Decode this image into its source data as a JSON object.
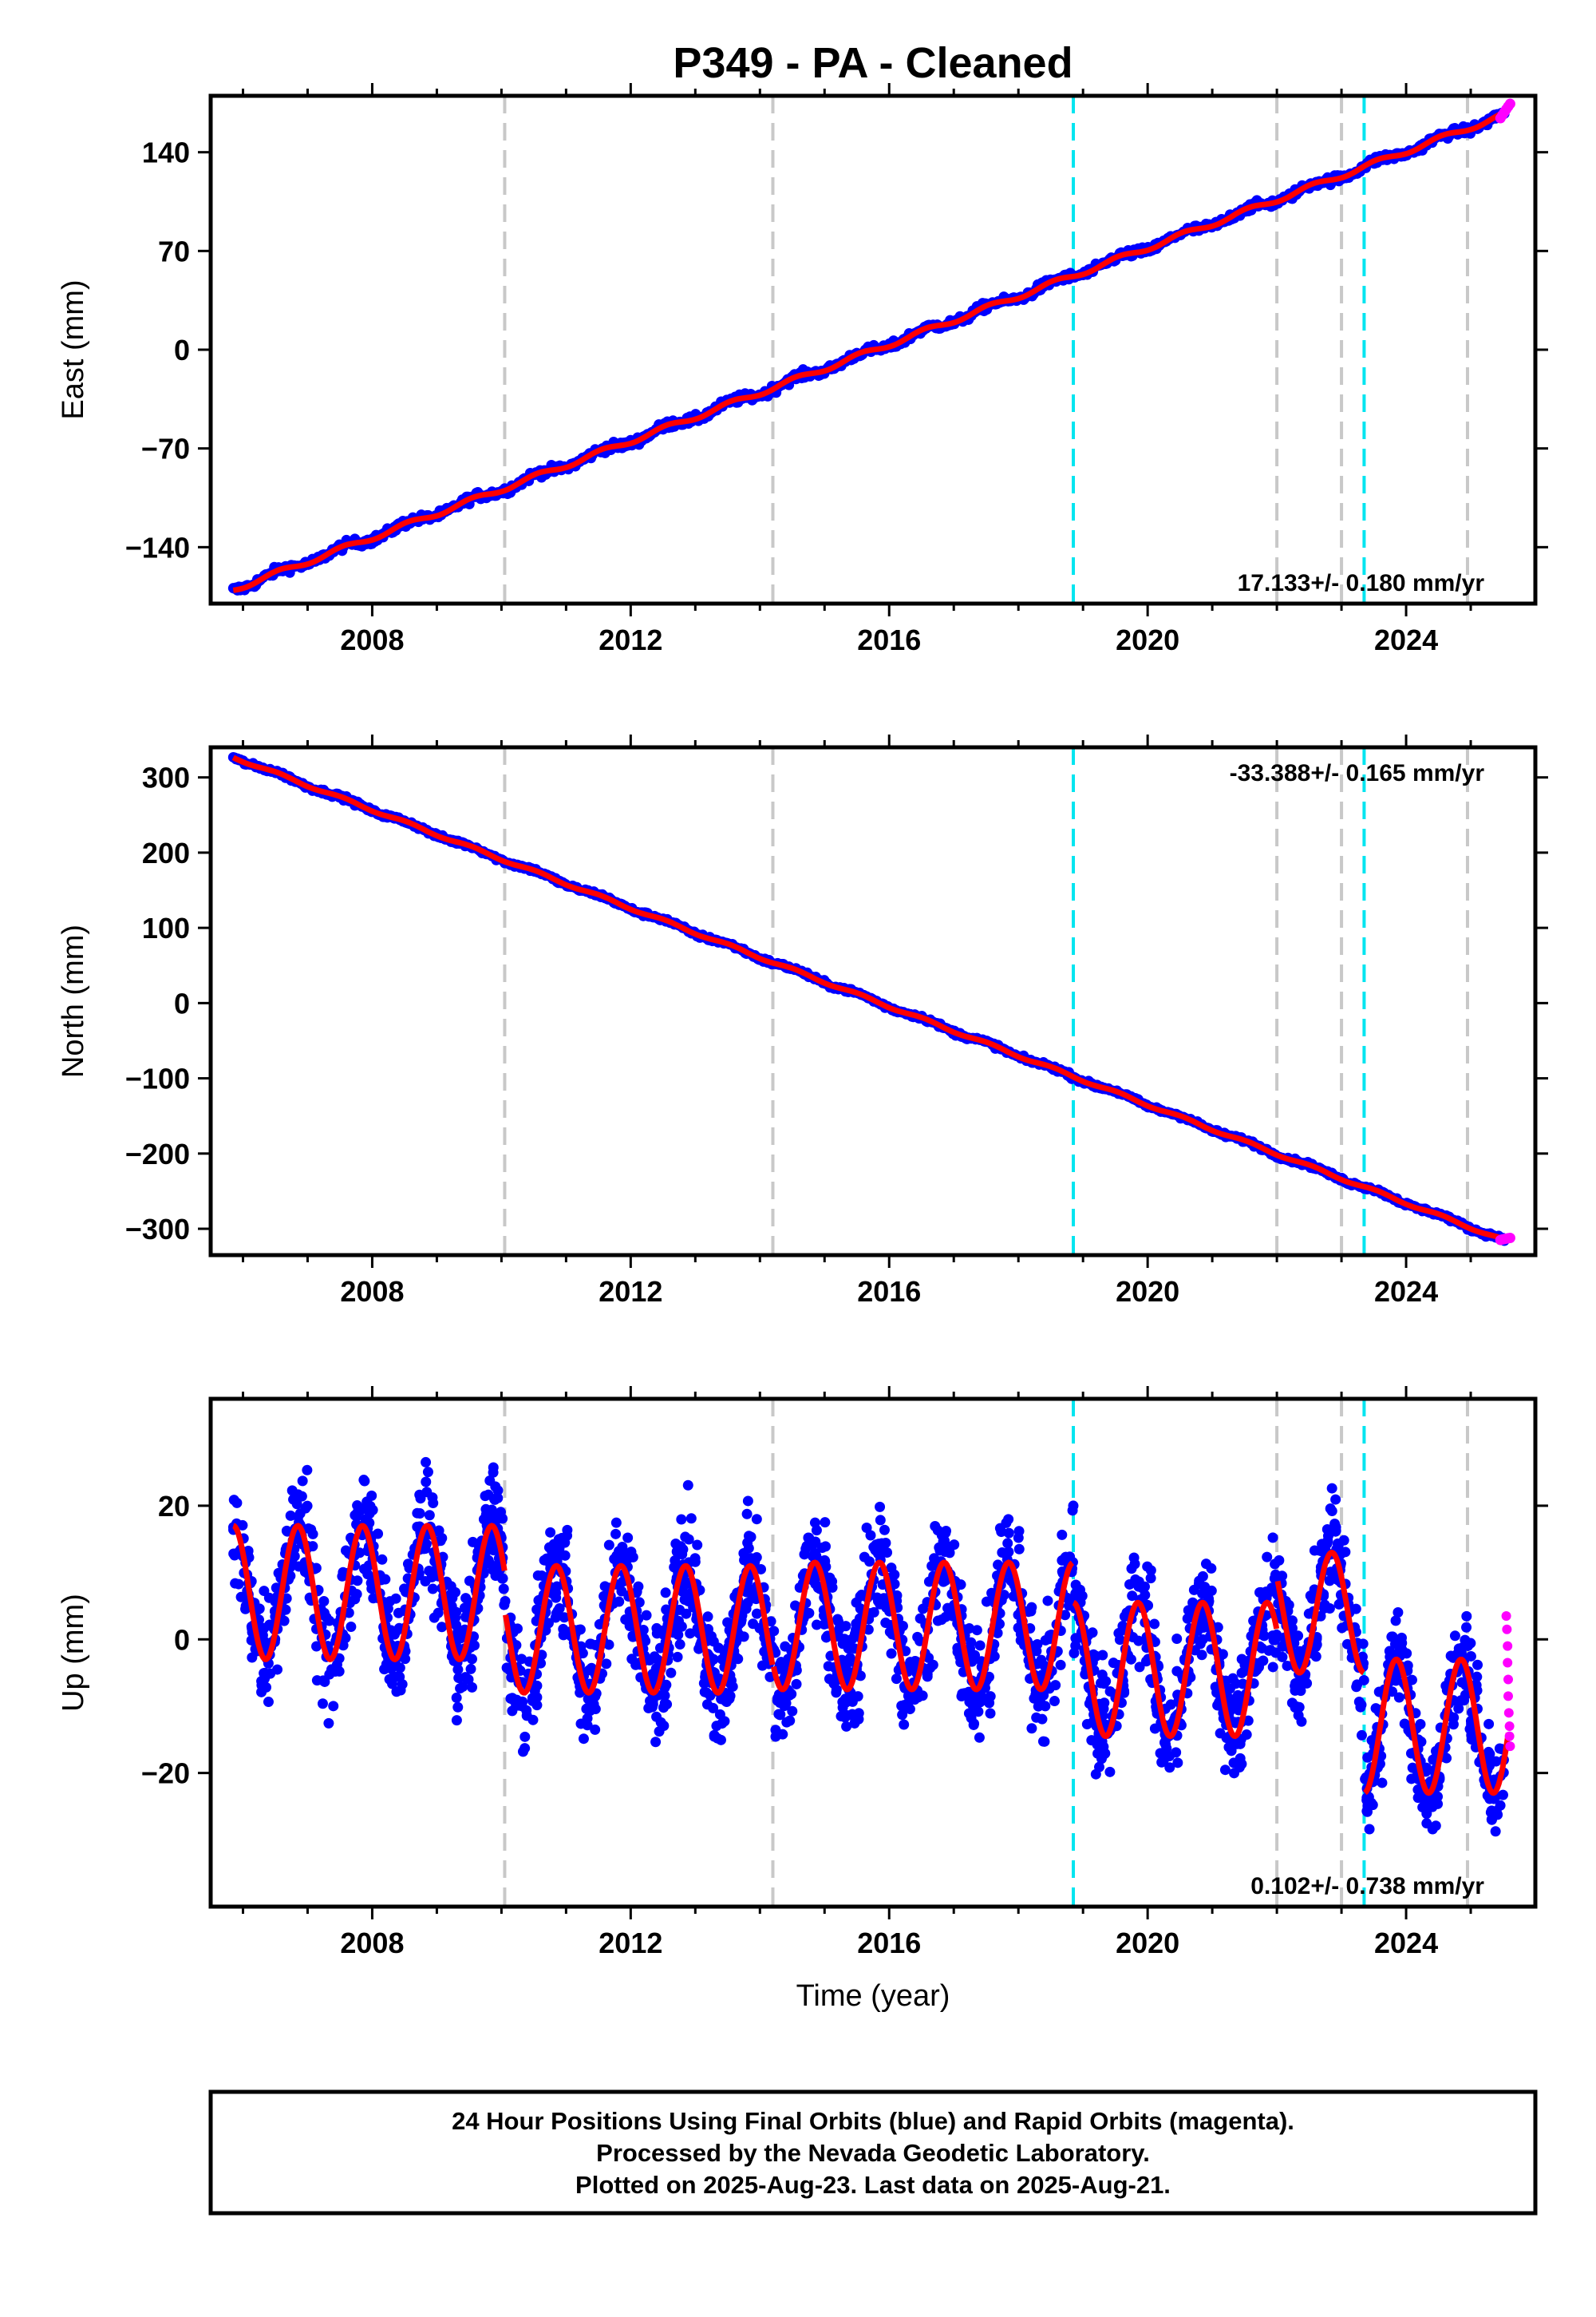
{
  "title": "P349  - PA - Cleaned",
  "colors": {
    "final_orbits": "#0000ff",
    "rapid_orbits": "#ff00ff",
    "model_fit": "#ff0000",
    "equipment_change": "#c8c8c8",
    "earthquake": "#00e5f0"
  },
  "chart_data": [
    {
      "type": "scatter",
      "ylabel": "East (mm)",
      "xlim": [
        2005.5,
        2026.0
      ],
      "ylim": [
        -180,
        180
      ],
      "xticks": [
        2008,
        2012,
        2016,
        2020,
        2024
      ],
      "yticks": [
        -140,
        -70,
        0,
        70,
        140
      ],
      "ytick_labels": [
        "−140",
        "−70",
        "0",
        "70",
        "140"
      ],
      "rate_text": "17.133+/- 0.180 mm/yr",
      "rate_position": "bottom-right",
      "start": [
        2005.85,
        -170
      ],
      "end": [
        2025.6,
        168
      ],
      "rate_mm_per_yr": 17.133,
      "gray_dashed_lines": [
        2010.05,
        2014.2,
        2022.0,
        2023.0,
        2024.95
      ],
      "cyan_dashed_lines": [
        2018.85,
        2023.35
      ]
    },
    {
      "type": "scatter",
      "ylabel": "North (mm)",
      "xlim": [
        2005.5,
        2026.0
      ],
      "ylim": [
        -335,
        340
      ],
      "xticks": [
        2008,
        2012,
        2016,
        2020,
        2024
      ],
      "yticks": [
        -300,
        -200,
        -100,
        0,
        100,
        200,
        300
      ],
      "ytick_labels": [
        "−300",
        "−200",
        "−100",
        "0",
        "100",
        "200",
        "300"
      ],
      "rate_text": "-33.388+/- 0.165 mm/yr",
      "rate_position": "top-right",
      "start": [
        2005.85,
        327
      ],
      "end": [
        2025.6,
        -318
      ],
      "rate_mm_per_yr": -33.388,
      "gray_dashed_lines": [
        2010.05,
        2014.2,
        2022.0,
        2023.0,
        2024.95
      ],
      "cyan_dashed_lines": [
        2018.85,
        2023.35
      ]
    },
    {
      "type": "scatter",
      "ylabel": "Up (mm)",
      "xlabel": "Time (year)",
      "xlim": [
        2005.5,
        2026.0
      ],
      "ylim": [
        -40,
        36
      ],
      "xticks": [
        2008,
        2012,
        2016,
        2020,
        2024
      ],
      "yticks": [
        -20,
        0,
        20
      ],
      "ytick_labels": [
        "−20",
        "0",
        "20"
      ],
      "rate_text": "0.102+/- 0.738 mm/yr",
      "rate_position": "bottom-right",
      "rate_mm_per_yr": 0.102,
      "seasonal_segments": [
        {
          "from": 2005.85,
          "to": 2010.05,
          "offset": 7,
          "amplitude": 10
        },
        {
          "from": 2010.05,
          "to": 2014.2,
          "offset": 1.5,
          "amplitude": 9.5
        },
        {
          "from": 2014.2,
          "to": 2018.85,
          "offset": 2,
          "amplitude": 9.5
        },
        {
          "from": 2018.85,
          "to": 2022.0,
          "offset": -4.5,
          "amplitude": 10
        },
        {
          "from": 2022.0,
          "to": 2023.35,
          "offset": 4,
          "amplitude": 9
        },
        {
          "from": 2023.35,
          "to": 2025.6,
          "offset": -13,
          "amplitude": 10
        }
      ],
      "rapid_orbit_points": [
        [
          2025.55,
          3.5
        ],
        [
          2025.56,
          1.5
        ],
        [
          2025.57,
          -1
        ],
        [
          2025.57,
          -3.5
        ],
        [
          2025.58,
          -6
        ],
        [
          2025.58,
          -8.5
        ],
        [
          2025.59,
          -11
        ],
        [
          2025.6,
          -13
        ],
        [
          2025.6,
          -14.5
        ],
        [
          2025.61,
          -16
        ]
      ],
      "gray_dashed_lines": [
        2010.05,
        2014.2,
        2022.0,
        2023.0,
        2024.95
      ],
      "cyan_dashed_lines": [
        2018.85,
        2023.35
      ]
    }
  ],
  "footer_lines": [
    "24 Hour Positions Using Final Orbits (blue) and Rapid Orbits (magenta).",
    "Processed by the Nevada Geodetic Laboratory.",
    "Plotted on 2025-Aug-23. Last data on 2025-Aug-21."
  ]
}
